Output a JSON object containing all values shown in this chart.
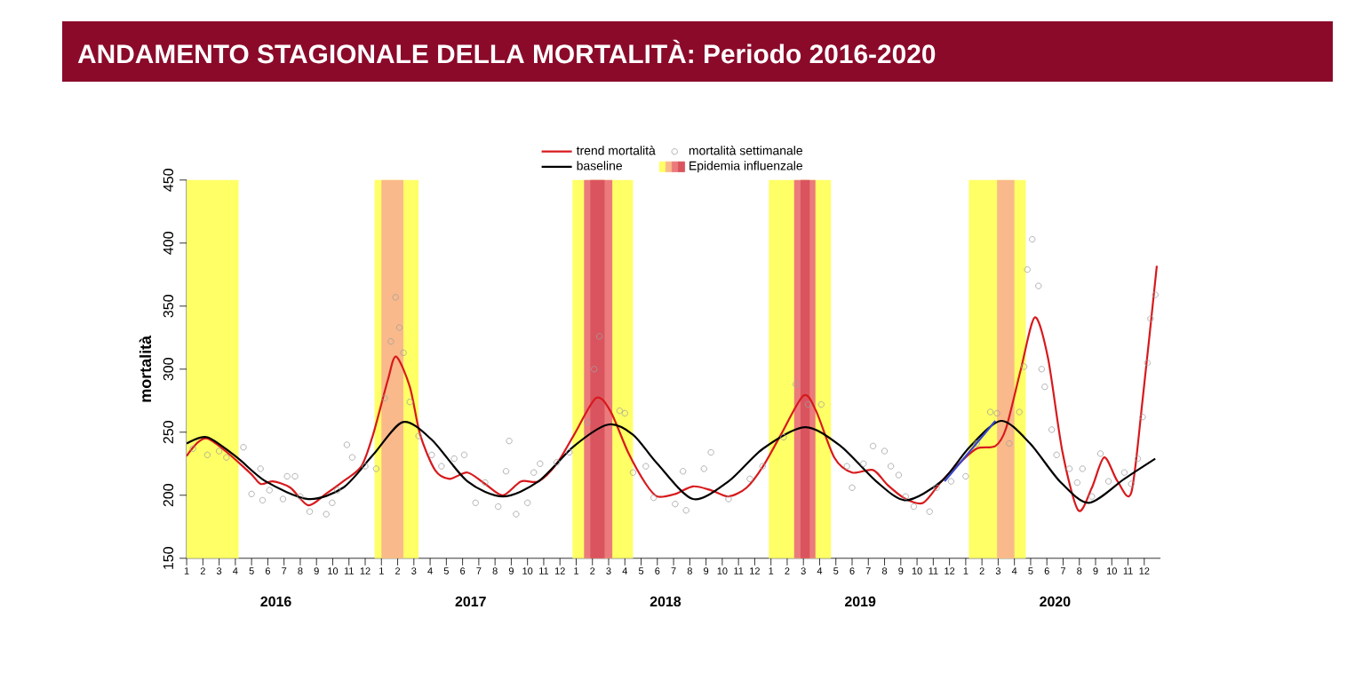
{
  "chart_data": {
    "type": "line",
    "title": "ANDAMENTO STAGIONALE DELLA MORTALITÀ: Periodo 2016-2020",
    "ylabel": "mortalità",
    "annotations": [
      "2016",
      "2017",
      "2018",
      "2019",
      "2020"
    ],
    "xlim": [
      "2016-01",
      "2021-01"
    ],
    "ylim": [
      150,
      450
    ],
    "yticks": [
      150,
      200,
      250,
      300,
      350,
      400,
      450
    ],
    "xticks": [
      {
        "value": "2016-01",
        "label": "1"
      },
      {
        "value": "2016-02",
        "label": "2"
      },
      {
        "value": "2016-03",
        "label": "3"
      },
      {
        "value": "2016-04",
        "label": "4"
      },
      {
        "value": "2016-05",
        "label": "5"
      },
      {
        "value": "2016-06",
        "label": "6"
      },
      {
        "value": "2016-07",
        "label": "7"
      },
      {
        "value": "2016-08",
        "label": "8"
      },
      {
        "value": "2016-09",
        "label": "9"
      },
      {
        "value": "2016-10",
        "label": "10"
      },
      {
        "value": "2016-11",
        "label": "11"
      },
      {
        "value": "2016-12",
        "label": "12"
      },
      {
        "value": "2017-01",
        "label": "1"
      },
      {
        "value": "2017-02",
        "label": "2"
      },
      {
        "value": "2017-03",
        "label": "3"
      },
      {
        "value": "2017-04",
        "label": "4"
      },
      {
        "value": "2017-05",
        "label": "5"
      },
      {
        "value": "2017-06",
        "label": "6"
      },
      {
        "value": "2017-07",
        "label": "7"
      },
      {
        "value": "2017-08",
        "label": "8"
      },
      {
        "value": "2017-09",
        "label": "9"
      },
      {
        "value": "2017-10",
        "label": "10"
      },
      {
        "value": "2017-11",
        "label": "11"
      },
      {
        "value": "2017-12",
        "label": "12"
      },
      {
        "value": "2018-01",
        "label": "1"
      },
      {
        "value": "2018-02",
        "label": "2"
      },
      {
        "value": "2018-03",
        "label": "3"
      },
      {
        "value": "2018-04",
        "label": "4"
      },
      {
        "value": "2018-05",
        "label": "5"
      },
      {
        "value": "2018-06",
        "label": "6"
      },
      {
        "value": "2018-07",
        "label": "7"
      },
      {
        "value": "2018-08",
        "label": "8"
      },
      {
        "value": "2018-09",
        "label": "9"
      },
      {
        "value": "2018-10",
        "label": "10"
      },
      {
        "value": "2018-11",
        "label": "11"
      },
      {
        "value": "2018-12",
        "label": "12"
      },
      {
        "value": "2019-01",
        "label": "1"
      },
      {
        "value": "2019-02",
        "label": "2"
      },
      {
        "value": "2019-03",
        "label": "3"
      },
      {
        "value": "2019-04",
        "label": "4"
      },
      {
        "value": "2019-05",
        "label": "5"
      },
      {
        "value": "2019-06",
        "label": "6"
      },
      {
        "value": "2019-07",
        "label": "7"
      },
      {
        "value": "2019-08",
        "label": "8"
      },
      {
        "value": "2019-09",
        "label": "9"
      },
      {
        "value": "2019-10",
        "label": "10"
      },
      {
        "value": "2019-11",
        "label": "11"
      },
      {
        "value": "2019-12",
        "label": "12"
      },
      {
        "value": "2020-01",
        "label": "1"
      },
      {
        "value": "2020-02",
        "label": "2"
      },
      {
        "value": "2020-03",
        "label": "3"
      },
      {
        "value": "2020-04",
        "label": "4"
      },
      {
        "value": "2020-05",
        "label": "5"
      },
      {
        "value": "2020-06",
        "label": "6"
      },
      {
        "value": "2020-07",
        "label": "7"
      },
      {
        "value": "2020-08",
        "label": "8"
      },
      {
        "value": "2020-09",
        "label": "9"
      },
      {
        "value": "2020-10",
        "label": "10"
      },
      {
        "value": "2020-11",
        "label": "11"
      },
      {
        "value": "2020-12",
        "label": "12"
      }
    ],
    "legend": "top",
    "bands": [
      {
        "axis": "x",
        "from": "2016-01-01",
        "to": "2016-04-07",
        "color": "#ffff66"
      },
      {
        "axis": "x",
        "from": "2016-12-19",
        "to": "2017-03-10",
        "color": "#ffff66"
      },
      {
        "axis": "x",
        "from": "2017-12-25",
        "to": "2018-04-16",
        "color": "#ffff66"
      },
      {
        "axis": "x",
        "from": "2018-12-28",
        "to": "2019-04-22",
        "color": "#ffff66"
      },
      {
        "axis": "x",
        "from": "2020-01-07",
        "to": "2020-04-22",
        "color": "#ffff66"
      },
      {
        "axis": "x",
        "from": "2017-01-01",
        "to": "2017-02-11",
        "color": "#f9b98a"
      },
      {
        "axis": "x",
        "from": "2020-02-28",
        "to": "2020-04-01",
        "color": "#f9b98a"
      },
      {
        "axis": "x",
        "from": "2018-01-16",
        "to": "2018-03-08",
        "color": "#eb7a7c"
      },
      {
        "axis": "x",
        "from": "2019-02-13",
        "to": "2019-03-24",
        "color": "#eb7a7c"
      },
      {
        "axis": "x",
        "from": "2018-01-28",
        "to": "2018-02-22",
        "color": "#d9545e",
        "label": "Epidemia influenzale"
      },
      {
        "axis": "x",
        "from": "2019-02-24",
        "to": "2019-03-13",
        "color": "#d9545e"
      }
    ],
    "series": [
      {
        "name": "trend mortalità",
        "marker": "none",
        "color": "#d7191c",
        "x": [
          "2016-01-01",
          "2016-02-09",
          "2016-04-25",
          "2016-05-18",
          "2016-06-10",
          "2016-07-13",
          "2016-08-16",
          "2016-09-18",
          "2016-10-21",
          "2016-11-24",
          "2016-12-16",
          "2017-01-13",
          "2017-01-29",
          "2017-02-22",
          "2017-03-13",
          "2017-04-10",
          "2017-05-07",
          "2017-06-10",
          "2017-07-13",
          "2017-08-16",
          "2017-09-19",
          "2017-10-22",
          "2017-11-25",
          "2017-12-28",
          "2018-02-07",
          "2018-03-04",
          "2018-04-07",
          "2018-05-10",
          "2018-06-01",
          "2018-07-04",
          "2018-08-07",
          "2018-09-10",
          "2018-10-13",
          "2018-11-16",
          "2018-12-17",
          "2019-01-20",
          "2019-03-01",
          "2019-03-25",
          "2019-04-28",
          "2019-06-01",
          "2019-07-10",
          "2019-08-07",
          "2019-09-10",
          "2019-10-13",
          "2019-11-16",
          "2019-12-19",
          "2020-01-22",
          "2020-02-25",
          "2020-03-16",
          "2020-04-13",
          "2020-05-09",
          "2020-06-03",
          "2020-06-30",
          "2020-07-30",
          "2020-08-25",
          "2020-09-17",
          "2020-10-12",
          "2020-11-07",
          "2020-11-28",
          "2020-12-25"
        ],
        "values": [
          231,
          245,
          219,
          209,
          211,
          206,
          192,
          201,
          211,
          223,
          248,
          291,
          310,
          286,
          248,
          220,
          213,
          218,
          209,
          200,
          211,
          211,
          225,
          248,
          277,
          267,
          234,
          209,
          199,
          201,
          207,
          204,
          199,
          206,
          223,
          248,
          279,
          267,
          230,
          218,
          220,
          208,
          197,
          194,
          211,
          225,
          237,
          239,
          253,
          300,
          341,
          309,
          234,
          188,
          206,
          230,
          211,
          202,
          276,
          382
        ]
      },
      {
        "name": "baseline",
        "marker": "none",
        "color": "#000000",
        "x": [
          "2016-01-01",
          "2016-02-09",
          "2016-04-04",
          "2016-05-28",
          "2016-08-16",
          "2016-10-21",
          "2016-12-16",
          "2017-02-10",
          "2017-04-04",
          "2017-06-10",
          "2017-08-16",
          "2017-10-22",
          "2017-12-28",
          "2018-02-28",
          "2018-04-16",
          "2018-06-01",
          "2018-08-07",
          "2018-10-13",
          "2018-12-17",
          "2019-03-04",
          "2019-05-10",
          "2019-07-16",
          "2019-09-10",
          "2019-11-16",
          "2020-01-10",
          "2020-03-07",
          "2020-04-30",
          "2020-06-25",
          "2020-08-19",
          "2020-10-25",
          "2020-12-22"
        ],
        "values": [
          241,
          246,
          230,
          211,
          197,
          206,
          232,
          258,
          244,
          211,
          199,
          211,
          239,
          256,
          248,
          225,
          197,
          211,
          237,
          254,
          239,
          211,
          196,
          211,
          239,
          259,
          241,
          211,
          194,
          213,
          229
        ]
      },
      {
        "name": "mortalità settimanale",
        "type": "scatter",
        "marker": "circle",
        "color": "#a0a0a0",
        "x": [
          "2016-01-13",
          "2016-02-09",
          "2016-03-01",
          "2016-03-15",
          "2016-04-16",
          "2016-05-01",
          "2016-05-18",
          "2016-05-22",
          "2016-06-04",
          "2016-07-07",
          "2016-07-22",
          "2016-06-29",
          "2016-08-01",
          "2016-08-19",
          "2016-09-19",
          "2016-09-30",
          "2016-10-10",
          "2016-10-28",
          "2016-11-07",
          "2016-12-01",
          "2016-12-22",
          "2017-01-07",
          "2017-01-19",
          "2017-01-28",
          "2017-02-04",
          "2017-02-11",
          "2017-02-22",
          "2017-03-10",
          "2017-04-04",
          "2017-04-22",
          "2017-05-16",
          "2017-06-04",
          "2017-06-25",
          "2017-07-13",
          "2017-08-07",
          "2017-08-22",
          "2017-08-28",
          "2017-09-10",
          "2017-10-01",
          "2017-10-13",
          "2017-10-25",
          "2017-11-25",
          "2017-12-19",
          "2018-01-22",
          "2018-02-04",
          "2018-02-13",
          "2018-03-22",
          "2018-04-01",
          "2018-04-16",
          "2018-05-10",
          "2018-05-25",
          "2018-07-19",
          "2018-08-28",
          "2018-09-10",
          "2018-07-04",
          "2018-07-25",
          "2018-10-13",
          "2018-11-22",
          "2018-12-16",
          "2019-01-25",
          "2019-02-16",
          "2019-03-10",
          "2019-04-04",
          "2019-05-22",
          "2019-06-01",
          "2019-06-22",
          "2019-07-10",
          "2019-08-01",
          "2019-08-13",
          "2019-08-28",
          "2019-09-10",
          "2019-09-25",
          "2019-10-25",
          "2019-11-07",
          "2019-12-04",
          "2020-01-01",
          "2020-01-22",
          "2020-02-16",
          "2020-02-28",
          "2020-03-22",
          "2020-04-10",
          "2020-04-19",
          "2020-04-25",
          "2020-05-04",
          "2020-05-16",
          "2020-05-22",
          "2020-05-28",
          "2020-06-10",
          "2020-06-19",
          "2020-07-13",
          "2020-07-28",
          "2020-08-07",
          "2020-08-25",
          "2020-09-10",
          "2020-09-25",
          "2020-10-25",
          "2020-11-07",
          "2020-11-19",
          "2020-11-28",
          "2020-12-07",
          "2020-12-13",
          "2020-12-22"
        ],
        "values": [
          237,
          232,
          235,
          230,
          238,
          201,
          221,
          196,
          204,
          215,
          215,
          197,
          199,
          187,
          185,
          194,
          204,
          240,
          230,
          223,
          221,
          277,
          322,
          357,
          333,
          313,
          274,
          247,
          232,
          223,
          229,
          232,
          194,
          210,
          191,
          219,
          243,
          185,
          194,
          218,
          225,
          226,
          234,
          258,
          300,
          326,
          267,
          265,
          218,
          223,
          198,
          219,
          221,
          234,
          193,
          188,
          197,
          213,
          223,
          246,
          288,
          272,
          272,
          223,
          206,
          225,
          239,
          235,
          223,
          216,
          199,
          191,
          187,
          206,
          211,
          215,
          241,
          266,
          265,
          241,
          266,
          302,
          379,
          403,
          366,
          300,
          286,
          252,
          232,
          221,
          210,
          221,
          199,
          233,
          211,
          218,
          209,
          229,
          262,
          305,
          340,
          359
        ]
      },
      {
        "marker": "none",
        "color": "#3344cc",
        "x": [
          "2019-11-22",
          "2020-02-25"
        ],
        "values": [
          211,
          259
        ]
      }
    ]
  }
}
